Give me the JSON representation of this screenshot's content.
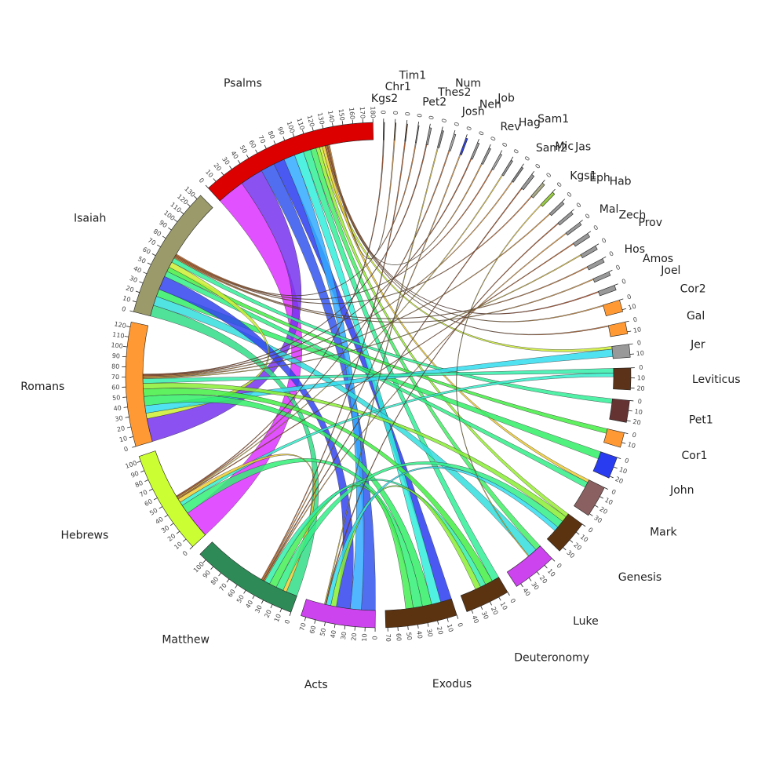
{
  "chart_data": {
    "type": "chord",
    "segments": [
      {
        "name": "Kgs2",
        "size": 1,
        "color": "#555555",
        "ticks": [
          0
        ]
      },
      {
        "name": "Chr1",
        "size": 1,
        "color": "#8a6a3a",
        "ticks": [
          0
        ]
      },
      {
        "name": "Tim1",
        "size": 1,
        "color": "#5a3010",
        "ticks": [
          0
        ]
      },
      {
        "name": "Pet2",
        "size": 1,
        "color": "#777777",
        "ticks": [
          0
        ]
      },
      {
        "name": "Thes2",
        "size": 2,
        "color": "#999999",
        "ticks": [
          0
        ]
      },
      {
        "name": "Num",
        "size": 2,
        "color": "#888888",
        "ticks": [
          0
        ]
      },
      {
        "name": "Josh",
        "size": 2,
        "color": "#aaaaaa",
        "ticks": [
          0
        ]
      },
      {
        "name": "Neh",
        "size": 2,
        "color": "#3344dd",
        "ticks": [
          0
        ]
      },
      {
        "name": "Job",
        "size": 2,
        "color": "#999999",
        "ticks": [
          0
        ]
      },
      {
        "name": "Rev",
        "size": 2,
        "color": "#999999",
        "ticks": [
          0
        ]
      },
      {
        "name": "Hag",
        "size": 2,
        "color": "#aaaaaa",
        "ticks": [
          0
        ]
      },
      {
        "name": "Sam1",
        "size": 2,
        "color": "#999999",
        "ticks": [
          0
        ]
      },
      {
        "name": "Sam2",
        "size": 2,
        "color": "#888888",
        "ticks": [
          0
        ]
      },
      {
        "name": "Mic",
        "size": 3,
        "color": "#999999",
        "ticks": [
          0
        ]
      },
      {
        "name": "Jas",
        "size": 3,
        "color": "#aaaa88",
        "ticks": [
          0
        ]
      },
      {
        "name": "Kgs1",
        "size": 3,
        "color": "#99cc44",
        "ticks": [
          0
        ]
      },
      {
        "name": "Eph",
        "size": 3,
        "color": "#999999",
        "ticks": [
          0
        ]
      },
      {
        "name": "Hab",
        "size": 3,
        "color": "#999999",
        "ticks": [
          0
        ]
      },
      {
        "name": "Mal",
        "size": 3,
        "color": "#999999",
        "ticks": [
          0
        ]
      },
      {
        "name": "Zech",
        "size": 4,
        "color": "#999999",
        "ticks": [
          0
        ]
      },
      {
        "name": "Prov",
        "size": 4,
        "color": "#999999",
        "ticks": [
          0
        ]
      },
      {
        "name": "Hos",
        "size": 4,
        "color": "#999999",
        "ticks": [
          0
        ]
      },
      {
        "name": "Amos",
        "size": 4,
        "color": "#999999",
        "ticks": [
          0
        ]
      },
      {
        "name": "Joel",
        "size": 5,
        "color": "#999999",
        "ticks": [
          0
        ]
      },
      {
        "name": "Cor2",
        "size": 12,
        "color": "#ff9933",
        "ticks": [
          0,
          10
        ]
      },
      {
        "name": "Gal",
        "size": 12,
        "color": "#ff9933",
        "ticks": [
          0,
          10
        ]
      },
      {
        "name": "Jer",
        "size": 13,
        "color": "#999999",
        "ticks": [
          0,
          10
        ]
      },
      {
        "name": "Leviticus",
        "size": 22,
        "color": "#5c3318",
        "ticks": [
          0,
          10,
          20
        ]
      },
      {
        "name": "Pet1",
        "size": 22,
        "color": "#663333",
        "ticks": [
          0,
          10,
          20
        ]
      },
      {
        "name": "Cor1",
        "size": 15,
        "color": "#ff9933",
        "ticks": [
          0,
          10
        ]
      },
      {
        "name": "John",
        "size": 22,
        "color": "#2a3cf0",
        "ticks": [
          0,
          10,
          20
        ]
      },
      {
        "name": "Mark",
        "size": 32,
        "color": "#8b6060",
        "ticks": [
          0,
          10,
          20,
          30
        ]
      },
      {
        "name": "Genesis",
        "size": 35,
        "color": "#5c3310",
        "ticks": [
          0,
          10,
          20,
          30
        ]
      },
      {
        "name": "Luke",
        "size": 45,
        "color": "#cc44ee",
        "ticks": [
          0,
          10,
          20,
          30,
          40
        ]
      },
      {
        "name": "Deuteronomy",
        "size": 45,
        "color": "#5c3310",
        "ticks": [
          0,
          10,
          20,
          30,
          40
        ]
      },
      {
        "name": "Exodus",
        "size": 72,
        "color": "#5c3310",
        "ticks": [
          0,
          10,
          20,
          30,
          40,
          50,
          60,
          70
        ]
      },
      {
        "name": "Acts",
        "size": 75,
        "color": "#cc44ee",
        "ticks": [
          0,
          10,
          20,
          30,
          40,
          50,
          60,
          70
        ]
      },
      {
        "name": "Matthew",
        "size": 108,
        "color": "#2e8b57",
        "ticks": [
          0,
          10,
          20,
          30,
          40,
          50,
          60,
          70,
          80,
          90,
          100
        ]
      },
      {
        "name": "Hebrews",
        "size": 105,
        "color": "#ccff33",
        "ticks": [
          0,
          10,
          20,
          30,
          40,
          50,
          60,
          70,
          80,
          90,
          100
        ]
      },
      {
        "name": "Romans",
        "size": 125,
        "color": "#ff9933",
        "ticks": [
          0,
          10,
          20,
          30,
          40,
          50,
          60,
          70,
          80,
          90,
          100,
          110,
          120
        ]
      },
      {
        "name": "Isaiah",
        "size": 135,
        "color": "#9a9a6a",
        "ticks": [
          0,
          10,
          20,
          30,
          40,
          50,
          60,
          70,
          80,
          90,
          100,
          110,
          120,
          130
        ]
      },
      {
        "name": "Psalms",
        "size": 180,
        "color": "#dd0000",
        "ticks": [
          0,
          10,
          20,
          30,
          40,
          50,
          60,
          70,
          80,
          90,
          100,
          110,
          120,
          130,
          140,
          150,
          160,
          170,
          180
        ]
      }
    ],
    "chords": [
      {
        "source": "Psalms",
        "target": "Hebrews",
        "value": 30,
        "color": "#dd33ff"
      },
      {
        "source": "Psalms",
        "target": "Romans",
        "value": 25,
        "color": "#7733ee"
      },
      {
        "source": "Psalms",
        "target": "Acts",
        "value": 15,
        "color": "#3355ee"
      },
      {
        "source": "Psalms",
        "target": "Exodus",
        "value": 12,
        "color": "#2a3cf0"
      },
      {
        "source": "Psalms",
        "target": "Acts",
        "value": 12,
        "color": "#33aaff"
      },
      {
        "source": "Psalms",
        "target": "Exodus",
        "value": 10,
        "color": "#33eedd"
      },
      {
        "source": "Psalms",
        "target": "Deuteronomy",
        "value": 8,
        "color": "#33ee99"
      },
      {
        "source": "Psalms",
        "target": "Luke",
        "value": 6,
        "color": "#44ee66"
      },
      {
        "source": "Psalms",
        "target": "Genesis",
        "value": 4,
        "color": "#99ee33"
      },
      {
        "source": "Psalms",
        "target": "Jer",
        "value": 3,
        "color": "#ccee33"
      },
      {
        "source": "Psalms",
        "target": "Mark",
        "value": 3,
        "color": "#eecc33"
      },
      {
        "source": "Isaiah",
        "target": "Matthew",
        "value": 12,
        "color": "#33dd88"
      },
      {
        "source": "Isaiah",
        "target": "Luke",
        "value": 10,
        "color": "#33dddd"
      },
      {
        "source": "Isaiah",
        "target": "John",
        "value": 8,
        "color": "#33ee66"
      },
      {
        "source": "Isaiah",
        "target": "Acts",
        "value": 15,
        "color": "#3344ee"
      },
      {
        "source": "Isaiah",
        "target": "Mark",
        "value": 6,
        "color": "#33ee88"
      },
      {
        "source": "Isaiah",
        "target": "Cor1",
        "value": 5,
        "color": "#44ee44"
      },
      {
        "source": "Isaiah",
        "target": "Romans",
        "value": 6,
        "color": "#ccee33"
      },
      {
        "source": "Isaiah",
        "target": "Pet1",
        "value": 5,
        "color": "#33ee99"
      },
      {
        "source": "Romans",
        "target": "Jer",
        "value": 8,
        "color": "#33ddee"
      },
      {
        "source": "Romans",
        "target": "Exodus",
        "value": 10,
        "color": "#33ee66"
      },
      {
        "source": "Romans",
        "target": "Deuteronomy",
        "value": 8,
        "color": "#44ee44"
      },
      {
        "source": "Romans",
        "target": "Genesis",
        "value": 6,
        "color": "#88ee33"
      },
      {
        "source": "Romans",
        "target": "Leviticus",
        "value": 5,
        "color": "#33eeaa"
      },
      {
        "source": "Hebrews",
        "target": "Exodus",
        "value": 10,
        "color": "#33ee77"
      },
      {
        "source": "Hebrews",
        "target": "Leviticus",
        "value": 4,
        "color": "#33eecc"
      },
      {
        "source": "Hebrews",
        "target": "Matthew",
        "value": 4,
        "color": "#eecc33"
      },
      {
        "source": "Matthew",
        "target": "Genesis",
        "value": 8,
        "color": "#33ee88"
      },
      {
        "source": "Matthew",
        "target": "Exodus",
        "value": 8,
        "color": "#44ee55"
      },
      {
        "source": "Matthew",
        "target": "Deuteronomy",
        "value": 6,
        "color": "#33eeaa"
      },
      {
        "source": "Acts",
        "target": "Deuteronomy",
        "value": 6,
        "color": "#88ee33"
      },
      {
        "source": "Acts",
        "target": "Genesis",
        "value": 5,
        "color": "#33ddee"
      },
      {
        "source": "Psalms",
        "target": "Gal",
        "value": 1,
        "color": "#cc6622"
      },
      {
        "source": "Psalms",
        "target": "Cor2",
        "value": 1,
        "color": "#ee9933"
      },
      {
        "source": "Psalms",
        "target": "Joel",
        "value": 1,
        "color": "#cc4411"
      },
      {
        "source": "Isaiah",
        "target": "Amos",
        "value": 1,
        "color": "#ee9933"
      },
      {
        "source": "Isaiah",
        "target": "Hos",
        "value": 1,
        "color": "#dd7722"
      },
      {
        "source": "Romans",
        "target": "Prov",
        "value": 1,
        "color": "#eecc33"
      },
      {
        "source": "Hebrews",
        "target": "Zech",
        "value": 1,
        "color": "#cc5511"
      },
      {
        "source": "Matthew",
        "target": "Mal",
        "value": 1,
        "color": "#ee9933"
      },
      {
        "source": "Acts",
        "target": "Hab",
        "value": 1,
        "color": "#aa4411"
      },
      {
        "source": "Romans",
        "target": "Eph",
        "value": 1,
        "color": "#dd8822"
      },
      {
        "source": "Luke",
        "target": "Kgs1",
        "value": 1,
        "color": "#eecc33"
      },
      {
        "source": "Isaiah",
        "target": "Jas",
        "value": 1,
        "color": "#cc6622"
      },
      {
        "source": "Matthew",
        "target": "Mic",
        "value": 1,
        "color": "#aa4411"
      },
      {
        "source": "Romans",
        "target": "Sam2",
        "value": 1,
        "color": "#ee9933"
      },
      {
        "source": "Hebrews",
        "target": "Sam1",
        "value": 1,
        "color": "#eecc33"
      },
      {
        "source": "Isaiah",
        "target": "Hag",
        "value": 1,
        "color": "#cc5511"
      },
      {
        "source": "Psalms",
        "target": "Rev",
        "value": 1,
        "color": "#dd8822"
      },
      {
        "source": "Romans",
        "target": "Job",
        "value": 1,
        "color": "#aa4411"
      },
      {
        "source": "Matthew",
        "target": "Neh",
        "value": 1,
        "color": "#ee9933"
      },
      {
        "source": "Hebrews",
        "target": "Josh",
        "value": 1,
        "color": "#cc6622"
      },
      {
        "source": "Acts",
        "target": "Num",
        "value": 1,
        "color": "#eecc33"
      },
      {
        "source": "Romans",
        "target": "Thes2",
        "value": 1,
        "color": "#aa4411"
      },
      {
        "source": "Isaiah",
        "target": "Pet2",
        "value": 1,
        "color": "#dd7722"
      },
      {
        "source": "Matthew",
        "target": "Tim1",
        "value": 1,
        "color": "#cc5511"
      },
      {
        "source": "Psalms",
        "target": "Chr1",
        "value": 1,
        "color": "#ee9933"
      },
      {
        "source": "Hebrews",
        "target": "Kgs2",
        "value": 1,
        "color": "#aa4411"
      }
    ]
  }
}
